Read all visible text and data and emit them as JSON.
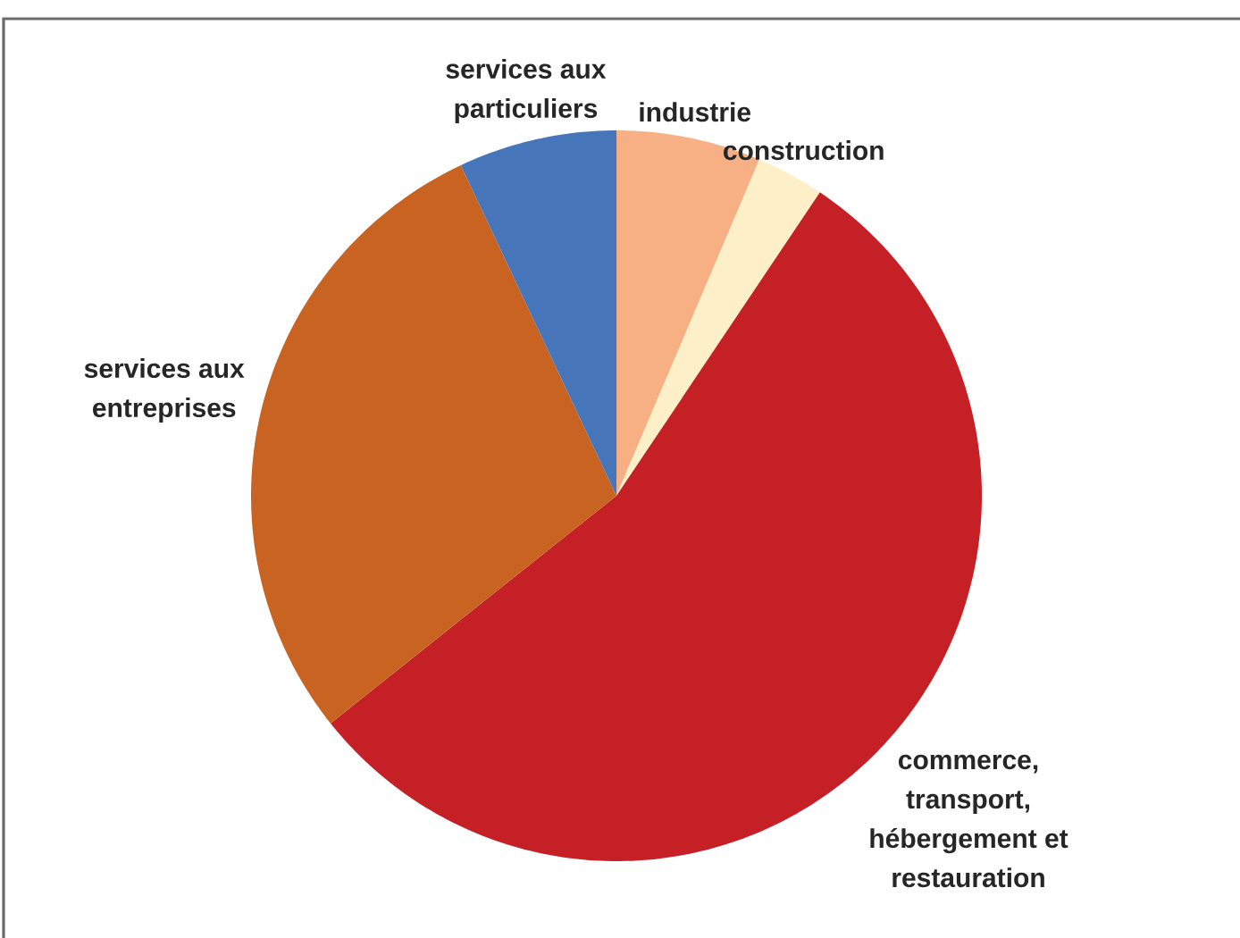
{
  "chart_data": {
    "type": "pie",
    "categories": [
      "industrie",
      "construction",
      "commerce, transport, hébergement et restauration",
      "services aux entreprises",
      "services aux particuliers"
    ],
    "values": [
      6.4,
      3.0,
      54.9,
      28.7,
      7.0
    ],
    "colors": [
      "#f7b084",
      "#fdf0c8",
      "#c42026",
      "#c86322",
      "#4675b9"
    ]
  }
}
